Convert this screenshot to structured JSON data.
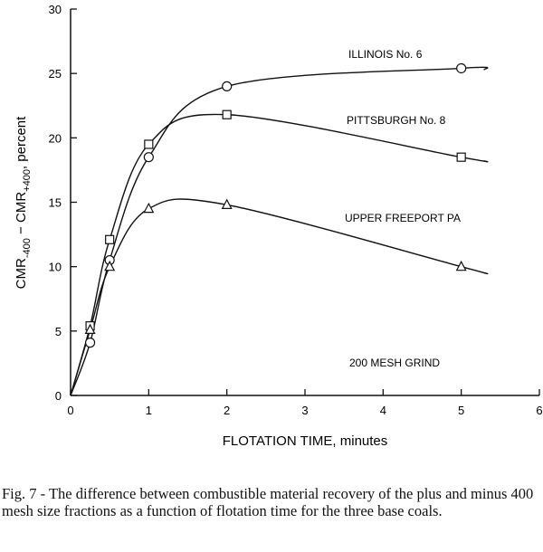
{
  "chart_data": {
    "type": "line",
    "xlabel": "FLOTATION TIME, minutes",
    "ylabel": {
      "main1": "CMR",
      "sub1": "-400",
      "mid": " − CMR",
      "sub2": "+400",
      "tail": ", percent"
    },
    "xlim": [
      0,
      6
    ],
    "ylim": [
      0,
      30
    ],
    "xticks": [
      "0",
      "1",
      "2",
      "3",
      "4",
      "5",
      "6"
    ],
    "yticks": [
      "0",
      "5",
      "10",
      "15",
      "20",
      "25",
      "30"
    ],
    "grid": false,
    "annotation": "200 MESH GRIND",
    "series": [
      {
        "name": "ILLINOIS No. 6",
        "marker": "circle",
        "x": [
          0.25,
          0.5,
          1,
          2,
          5
        ],
        "y": [
          4.1,
          10.5,
          18.5,
          24.0,
          25.4
        ]
      },
      {
        "name": "PITTSBURGH No. 8",
        "marker": "square",
        "x": [
          0.25,
          0.5,
          1,
          2,
          5
        ],
        "y": [
          5.4,
          12.1,
          19.5,
          21.8,
          18.5
        ]
      },
      {
        "name": "UPPER FREEPORT PA",
        "marker": "triangle",
        "x": [
          0.25,
          0.5,
          1,
          2,
          5
        ],
        "y": [
          5.1,
          10.0,
          14.5,
          14.8,
          10.0
        ]
      }
    ]
  },
  "caption": "Fig. 7 - The difference between combustible material recovery of the plus and minus 400 mesh size fractions as a function of flotation time for the three base coals."
}
